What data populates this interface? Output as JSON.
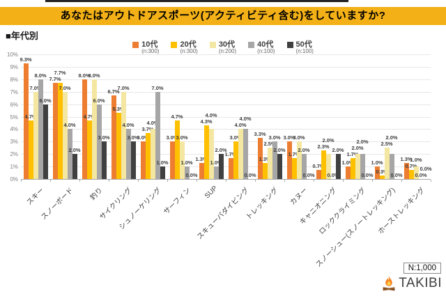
{
  "title": "あなたはアウトドアスポーツ(アクティビティ含む)をしていますか?",
  "section_label": "■年代別",
  "note": "N:1,000",
  "brand": "TAKIBI",
  "colors": {
    "banner": "#F3B117",
    "series": [
      "#ED7D31",
      "#FFC000",
      "#F3E7A2",
      "#A6A6A6",
      "#404040"
    ]
  },
  "chart_data": {
    "type": "bar",
    "title": "あなたはアウトドアスポーツ(アクティビティ含む)をしていますか?",
    "subtitle": "■年代別",
    "categories": [
      "スキー",
      "スノーボード",
      "釣り",
      "サイクリング",
      "シュノーケリング",
      "サーフィン",
      "SUP",
      "スキューバダイビング",
      "トレッキング",
      "カヌー",
      "キャニオニング",
      "ロッククライミング",
      "スノーシュー(スノートレッキング)",
      "ホーストレッキング"
    ],
    "series": [
      {
        "name": "10代",
        "n_label": "(n:300)",
        "color": "#ED7D31",
        "values": [
          9.3,
          7.7,
          8.0,
          6.7,
          3.0,
          3.0,
          1.3,
          1.7,
          3.3,
          3.0,
          0.7,
          1.0,
          1.0,
          1.3
        ]
      },
      {
        "name": "20代",
        "n_label": "(n:300)",
        "color": "#FFC000",
        "values": [
          4.7,
          7.7,
          4.7,
          5.3,
          3.7,
          4.7,
          4.3,
          3.0,
          1.3,
          1.7,
          2.3,
          1.7,
          0.3,
          0.7
        ]
      },
      {
        "name": "30代",
        "n_label": "(n:200)",
        "color": "#F3E7A2",
        "values": [
          7.0,
          7.0,
          8.0,
          7.0,
          4.0,
          3.0,
          4.0,
          4.0,
          2.5,
          3.0,
          2.0,
          2.0,
          2.5,
          1.0
        ]
      },
      {
        "name": "40代",
        "n_label": "(n:100)",
        "color": "#A6A6A6",
        "values": [
          8.0,
          4.0,
          6.0,
          4.0,
          7.0,
          1.0,
          1.0,
          4.0,
          3.0,
          2.0,
          0.0,
          2.0,
          2.0,
          0.0
        ]
      },
      {
        "name": "50代",
        "n_label": "(n:100)",
        "color": "#404040",
        "values": [
          6.0,
          2.0,
          3.0,
          3.0,
          1.0,
          0.0,
          2.0,
          0.0,
          2.0,
          0.0,
          2.0,
          0.0,
          0.0,
          0.0
        ]
      }
    ],
    "ylim": [
      0,
      10
    ],
    "ytick_step": 1,
    "ytick_labels": [
      "0%",
      "1%",
      "2%",
      "3%",
      "4%",
      "5%",
      "6%",
      "7%",
      "8%",
      "9%",
      "10%"
    ],
    "value_label_format": "0.0%",
    "grid": true,
    "legend_position": "top-center"
  }
}
